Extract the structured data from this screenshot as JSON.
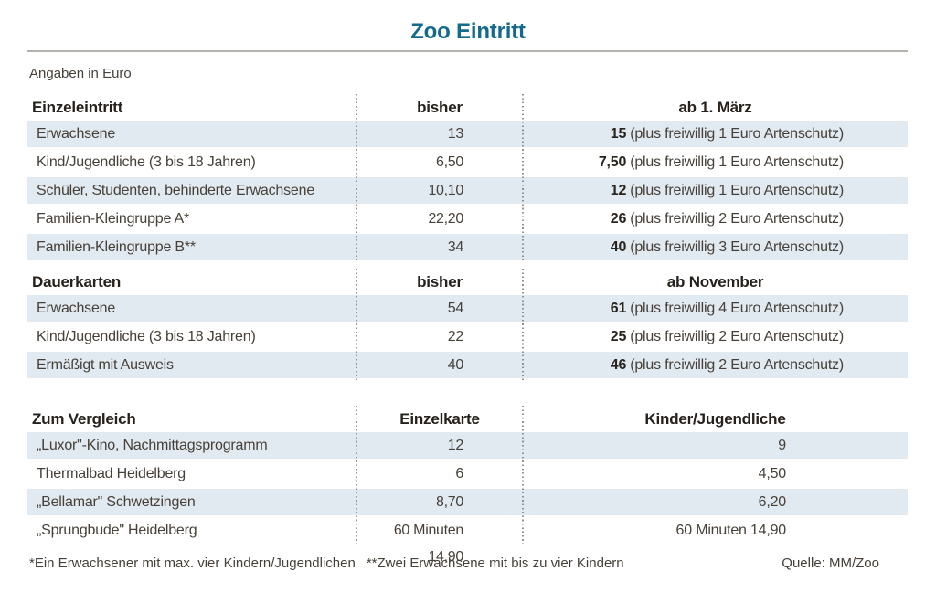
{
  "page": {
    "title": "Zoo Eintritt",
    "subtitle": "Angaben in Euro"
  },
  "colors": {
    "title_teal": "#156a8c",
    "row_stripe_blue": "#e1eaf1",
    "rule_gray": "#b2b3ad",
    "body_text": "#474039",
    "bold_text": "#2a241e",
    "divider_dots": "#93938d"
  },
  "sections": [
    {
      "label": "Einzeleintritt",
      "col2_header": "bisher",
      "col3_header": "ab 1. März",
      "rows": [
        {
          "label": "Erwachsene",
          "col2": "13",
          "col3_bold": "15",
          "col3_rest": "(plus freiwillig 1 Euro Artenschutz)"
        },
        {
          "label": "Kind/Jugendliche (3 bis 18 Jahren)",
          "col2": "6,50",
          "col3_bold": "7,50",
          "col3_rest": "(plus freiwillig 1 Euro Artenschutz)"
        },
        {
          "label": "Schüler, Studenten, behinderte Erwachsene",
          "col2": "10,10",
          "col3_bold": "12",
          "col3_rest": "(plus freiwillig 1 Euro Artenschutz)"
        },
        {
          "label": "Familien-Kleingruppe A*",
          "col2": "22,20",
          "col3_bold": "26",
          "col3_rest": "(plus freiwillig 2 Euro Artenschutz)"
        },
        {
          "label": "Familien-Kleingruppe B**",
          "col2": "34",
          "col3_bold": "40",
          "col3_rest": "(plus freiwillig 3 Euro Artenschutz)"
        }
      ]
    },
    {
      "label": "Dauerkarten",
      "col2_header": "bisher",
      "col3_header": "ab November",
      "rows": [
        {
          "label": "Erwachsene",
          "col2": "54",
          "col3_bold": "61",
          "col3_rest": "(plus freiwillig 4 Euro Artenschutz)"
        },
        {
          "label": "Kind/Jugendliche (3 bis 18 Jahren)",
          "col2": "22",
          "col3_bold": "25",
          "col3_rest": "(plus freiwillig 2 Euro Artenschutz)"
        },
        {
          "label": "Ermäßigt mit Ausweis",
          "col2": "40",
          "col3_bold": "46",
          "col3_rest": "(plus freiwillig 2 Euro Artenschutz)"
        }
      ]
    },
    {
      "label": "Zum Vergleich",
      "col2_header": "Einzelkarte",
      "col3_header": "Kinder/Jugendliche",
      "rows": [
        {
          "label": "„Luxor\"-Kino, Nachmittagsprogramm",
          "col2": "12",
          "col3": "9"
        },
        {
          "label": "Thermalbad Heidelberg",
          "col2": "6",
          "col3": "4,50"
        },
        {
          "label": "„Bellamar\" Schwetzingen",
          "col2": "8,70",
          "col3": "6,20"
        },
        {
          "label": "„Sprungbude\" Heidelberg",
          "col2": "60 Minuten 14,90",
          "col3": "60 Minuten 14,90"
        }
      ]
    }
  ],
  "footer": {
    "note1": "*Ein Erwachsener mit max. vier Kindern/Jugendlichen",
    "note2": "**Zwei Erwachsene mit bis zu vier Kindern",
    "source": "Quelle: MM/Zoo"
  },
  "chart_data": [
    {
      "type": "table",
      "title": "Einzeleintritt",
      "subtitle": "Angaben in Euro",
      "columns": [
        "Einzeleintritt",
        "bisher",
        "ab 1. März"
      ],
      "rows": [
        [
          "Erwachsene",
          "13",
          "15 (plus freiwillig 1 Euro Artenschutz)"
        ],
        [
          "Kind/Jugendliche (3 bis 18 Jahren)",
          "6,50",
          "7,50 (plus freiwillig 1 Euro Artenschutz)"
        ],
        [
          "Schüler, Studenten, behinderte Erwachsene",
          "10,10",
          "12 (plus freiwillig 1 Euro Artenschutz)"
        ],
        [
          "Familien-Kleingruppe A*",
          "22,20",
          "26 (plus freiwillig 2 Euro Artenschutz)"
        ],
        [
          "Familien-Kleingruppe B**",
          "34",
          "40 (plus freiwillig 3 Euro Artenschutz)"
        ]
      ]
    },
    {
      "type": "table",
      "title": "Dauerkarten",
      "subtitle": "Angaben in Euro",
      "columns": [
        "Dauerkarten",
        "bisher",
        "ab November"
      ],
      "rows": [
        [
          "Erwachsene",
          "54",
          "61 (plus freiwillig 4 Euro Artenschutz)"
        ],
        [
          "Kind/Jugendliche (3 bis 18 Jahren)",
          "22",
          "25 (plus freiwillig 2 Euro Artenschutz)"
        ],
        [
          "Ermäßigt mit Ausweis",
          "40",
          "46 (plus freiwillig 2 Euro Artenschutz)"
        ]
      ]
    },
    {
      "type": "table",
      "title": "Zum Vergleich",
      "subtitle": "Angaben in Euro",
      "columns": [
        "Zum Vergleich",
        "Einzelkarte",
        "Kinder/Jugendliche"
      ],
      "rows": [
        [
          "„Luxor\"-Kino, Nachmittagsprogramm",
          "12",
          "9"
        ],
        [
          "Thermalbad Heidelberg",
          "6",
          "4,50"
        ],
        [
          "„Bellamar\" Schwetzingen",
          "8,70",
          "6,20"
        ],
        [
          "„Sprungbude\" Heidelberg",
          "60 Minuten 14,90",
          "60 Minuten 14,90"
        ]
      ]
    }
  ]
}
